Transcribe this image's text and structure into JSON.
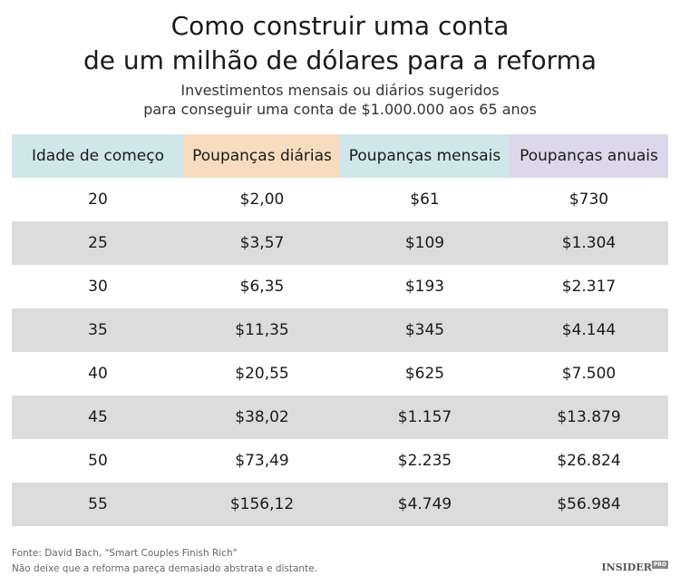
{
  "header": {
    "title": [
      "Como construir uma conta",
      "de um milhão de dólares para a reforma"
    ],
    "subtitle": [
      "Investimentos mensais ou diários sugeridos",
      "para conseguir uma conta de $1.000.000 aos 65 anos"
    ]
  },
  "table": {
    "columns": [
      "Idade de começo",
      "Poupanças diárias",
      "Poupanças mensais",
      "Poupanças anuais"
    ],
    "rows": [
      [
        "20",
        "$2,00",
        "$61",
        "$730"
      ],
      [
        "25",
        "$3,57",
        "$109",
        "$1.304"
      ],
      [
        "30",
        "$6,35",
        "$193",
        "$2.317"
      ],
      [
        "35",
        "$11,35",
        "$345",
        "$4.144"
      ],
      [
        "40",
        "$20,55",
        "$625",
        "$7.500"
      ],
      [
        "45",
        "$38,02",
        "$1.157",
        "$13.879"
      ],
      [
        "50",
        "$73,49",
        "$2.235",
        "$26.824"
      ],
      [
        "55",
        "$156,12",
        "$4.749",
        "$56.984"
      ]
    ]
  },
  "footer": {
    "source": "Fonte: David Bach, \"Smart Couples Finish Rich\"",
    "note": "Não deixe que a reforma pareça demasiado abstrata e distante."
  },
  "logo": {
    "name": "INSIDER",
    "badge": "PRO"
  }
}
